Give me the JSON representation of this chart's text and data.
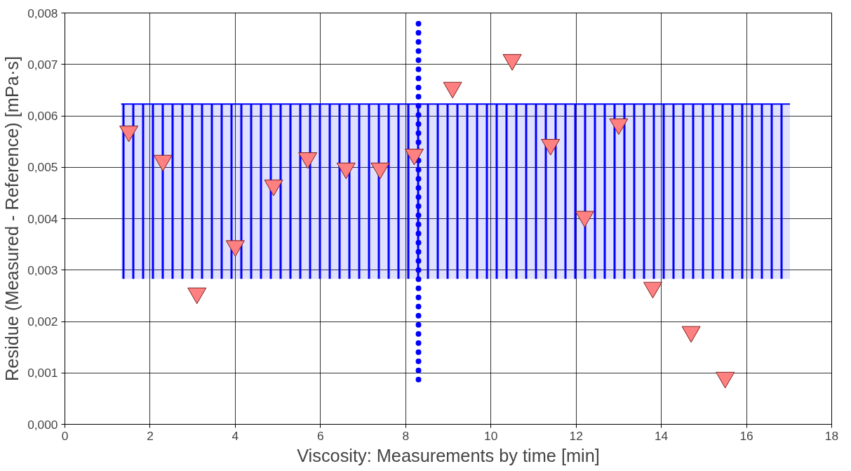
{
  "chart_data": {
    "type": "scatter",
    "xlabel": "Viscosity: Measurements by time [min]",
    "ylabel": "Residue (Measured - Reference) [mPa·s]",
    "xlim": [
      0,
      18
    ],
    "xticks": [
      0,
      2,
      4,
      6,
      8,
      10,
      12,
      14,
      16,
      18
    ],
    "ylim": [
      0,
      0.008
    ],
    "yticks": [
      {
        "value": 0,
        "label": "0,000"
      },
      {
        "value": 0.001,
        "label": "0,001"
      },
      {
        "value": 0.002,
        "label": "0,002"
      },
      {
        "value": 0.003,
        "label": "0,003"
      },
      {
        "value": 0.004,
        "label": "0,004"
      },
      {
        "value": 0.005,
        "label": "0,005"
      },
      {
        "value": 0.006,
        "label": "0,006"
      },
      {
        "value": 0.007,
        "label": "0,007"
      },
      {
        "value": 0.008,
        "label": "0,008"
      }
    ],
    "grid": true,
    "legend": false,
    "series": [
      {
        "type": "line",
        "color": "#0000ff",
        "line_style": "solid",
        "marker": "none",
        "x": [
          1.32,
          17.02
        ],
        "values": [
          0.00623,
          0.00623
        ],
        "lower": [
          0.00283,
          0.00283
        ],
        "upper": [
          0.00623,
          0.00623
        ]
      },
      {
        "type": "line",
        "color": "#0000ff",
        "line_style": "dotted",
        "marker": "none",
        "x": [
          8.3,
          8.3
        ],
        "values": [
          0.00087,
          0.00785
        ]
      },
      {
        "color": "#ff8080",
        "marker": "triangle",
        "x": [
          1.5,
          2.3,
          3.1,
          4.0,
          4.9,
          5.7,
          6.6,
          7.4,
          8.2,
          9.1,
          10.5,
          11.4,
          12.2,
          13.0,
          13.8,
          14.7,
          15.5
        ],
        "values": [
          0.0057,
          0.00513,
          0.00255,
          0.00347,
          0.00465,
          0.00518,
          0.00498,
          0.00498,
          0.00525,
          0.00655,
          0.00709,
          0.00544,
          0.00404,
          0.00584,
          0.00266,
          0.0018,
          0.00091
        ]
      }
    ]
  }
}
